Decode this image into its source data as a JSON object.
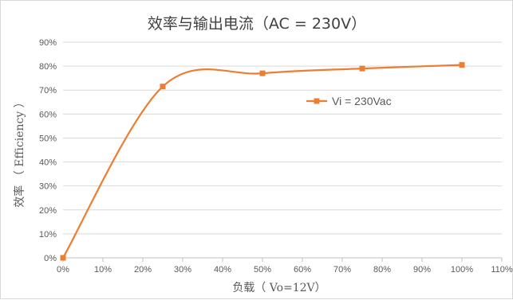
{
  "chart_data": {
    "type": "line",
    "title": "效率与输出电流（AC = 230V）",
    "xlabel": "负载（ Vo=12V）",
    "ylabel": "效率 （ Efficiency ）",
    "xlim": [
      0,
      110
    ],
    "ylim": [
      0,
      90
    ],
    "x_ticks": [
      "0%",
      "10%",
      "20%",
      "30%",
      "40%",
      "50%",
      "60%",
      "70%",
      "80%",
      "90%",
      "100%",
      "110%"
    ],
    "y_ticks": [
      "0%",
      "10%",
      "20%",
      "30%",
      "40%",
      "50%",
      "60%",
      "70%",
      "80%",
      "90%"
    ],
    "grid": true,
    "legend_position": "right-center",
    "series": [
      {
        "name": "Vi = 230Vac",
        "color": "#ed7d31",
        "marker": "square",
        "smooth": true,
        "x": [
          0,
          25,
          50,
          75,
          100
        ],
        "y": [
          0,
          71.5,
          77,
          79,
          80.5
        ]
      }
    ]
  }
}
